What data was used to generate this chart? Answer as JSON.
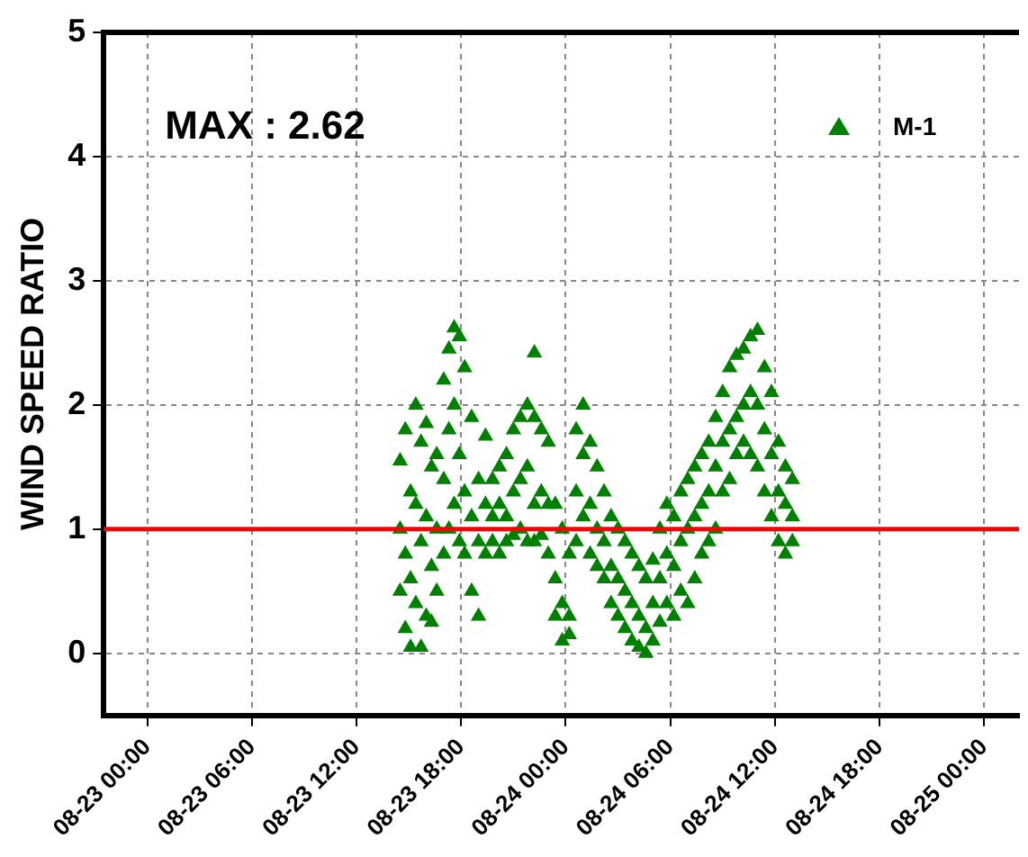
{
  "chart_data": {
    "type": "scatter",
    "ylabel": "WIND SPEED RATIO",
    "annotations": [
      "MAX : 2.62"
    ],
    "xlim": [
      "--08-22T21:30",
      "--08-25T02:00"
    ],
    "ylim": [
      -0.5,
      5
    ],
    "xticks": [
      {
        "value": "--08-23T00:00",
        "label": "08-23 00:00"
      },
      {
        "value": "--08-23T06:00",
        "label": "08-23 06:00"
      },
      {
        "value": "--08-23T12:00",
        "label": "08-23 12:00"
      },
      {
        "value": "--08-23T18:00",
        "label": "08-23 18:00"
      },
      {
        "value": "--08-24T00:00",
        "label": "08-24 00:00"
      },
      {
        "value": "--08-24T06:00",
        "label": "08-24 06:00"
      },
      {
        "value": "--08-24T12:00",
        "label": "08-24 12:00"
      },
      {
        "value": "--08-24T18:00",
        "label": "08-24 18:00"
      },
      {
        "value": "--08-25T00:00",
        "label": "08-25 00:00"
      }
    ],
    "yticks": [
      0,
      1,
      2,
      3,
      4,
      5
    ],
    "grid": true,
    "legend": "top right",
    "marker": "triangle",
    "ref_lines": [
      {
        "axis": "y",
        "value": 1,
        "color": "#ff0000"
      }
    ],
    "series": [
      {
        "name": "M-1",
        "color": "#008000",
        "x": [
          "--08-23T14:30",
          "--08-23T14:30",
          "--08-23T14:30",
          "--08-23T14:48",
          "--08-23T14:48",
          "--08-23T14:48",
          "--08-23T15:06",
          "--08-23T15:06",
          "--08-23T15:06",
          "--08-23T15:24",
          "--08-23T15:24",
          "--08-23T15:24",
          "--08-23T15:42",
          "--08-23T15:42",
          "--08-23T15:42",
          "--08-23T16:00",
          "--08-23T16:00",
          "--08-23T16:00",
          "--08-23T16:18",
          "--08-23T16:18",
          "--08-23T16:18",
          "--08-23T16:36",
          "--08-23T16:36",
          "--08-23T16:36",
          "--08-23T17:00",
          "--08-23T17:00",
          "--08-23T17:00",
          "--08-23T17:18",
          "--08-23T17:18",
          "--08-23T17:18",
          "--08-23T17:36",
          "--08-23T17:36",
          "--08-23T17:36",
          "--08-23T17:54",
          "--08-23T17:54",
          "--08-23T17:54",
          "--08-23T18:12",
          "--08-23T18:12",
          "--08-23T18:12",
          "--08-23T18:36",
          "--08-23T18:36",
          "--08-23T18:36",
          "--08-23T19:00",
          "--08-23T19:00",
          "--08-23T19:00",
          "--08-23T19:24",
          "--08-23T19:24",
          "--08-23T19:24",
          "--08-23T19:48",
          "--08-23T19:48",
          "--08-23T19:48",
          "--08-23T20:12",
          "--08-23T20:12",
          "--08-23T20:12",
          "--08-23T20:36",
          "--08-23T20:36",
          "--08-23T20:36",
          "--08-23T21:00",
          "--08-23T21:00",
          "--08-23T21:00",
          "--08-23T21:24",
          "--08-23T21:24",
          "--08-23T21:24",
          "--08-23T21:48",
          "--08-23T21:48",
          "--08-23T21:48",
          "--08-23T22:12",
          "--08-23T22:12",
          "--08-23T22:12",
          "--08-23T22:12",
          "--08-23T22:36",
          "--08-23T22:36",
          "--08-23T22:36",
          "--08-23T23:00",
          "--08-23T23:00",
          "--08-23T23:00",
          "--08-23T23:24",
          "--08-23T23:24",
          "--08-23T23:24",
          "--08-23T23:48",
          "--08-23T23:48",
          "--08-23T23:48",
          "--08-24T00:12",
          "--08-24T00:12",
          "--08-24T00:12",
          "--08-24T00:36",
          "--08-24T00:36",
          "--08-24T00:36",
          "--08-24T01:00",
          "--08-24T01:00",
          "--08-24T01:00",
          "--08-24T01:24",
          "--08-24T01:24",
          "--08-24T01:24",
          "--08-24T01:48",
          "--08-24T01:48",
          "--08-24T01:48",
          "--08-24T02:12",
          "--08-24T02:12",
          "--08-24T02:12",
          "--08-24T02:36",
          "--08-24T02:36",
          "--08-24T02:36",
          "--08-24T03:00",
          "--08-24T03:00",
          "--08-24T03:00",
          "--08-24T03:24",
          "--08-24T03:24",
          "--08-24T03:24",
          "--08-24T03:48",
          "--08-24T03:48",
          "--08-24T03:48",
          "--08-24T04:12",
          "--08-24T04:12",
          "--08-24T04:12",
          "--08-24T04:36",
          "--08-24T04:36",
          "--08-24T04:36",
          "--08-24T05:00",
          "--08-24T05:00",
          "--08-24T05:00",
          "--08-24T05:24",
          "--08-24T05:24",
          "--08-24T05:24",
          "--08-24T05:48",
          "--08-24T05:48",
          "--08-24T05:48",
          "--08-24T06:12",
          "--08-24T06:12",
          "--08-24T06:12",
          "--08-24T06:36",
          "--08-24T06:36",
          "--08-24T06:36",
          "--08-24T07:00",
          "--08-24T07:00",
          "--08-24T07:00",
          "--08-24T07:24",
          "--08-24T07:24",
          "--08-24T07:24",
          "--08-24T07:48",
          "--08-24T07:48",
          "--08-24T07:48",
          "--08-24T08:12",
          "--08-24T08:12",
          "--08-24T08:12",
          "--08-24T08:36",
          "--08-24T08:36",
          "--08-24T08:36",
          "--08-24T09:00",
          "--08-24T09:00",
          "--08-24T09:00",
          "--08-24T09:24",
          "--08-24T09:24",
          "--08-24T09:24",
          "--08-24T09:48",
          "--08-24T09:48",
          "--08-24T09:48",
          "--08-24T10:12",
          "--08-24T10:12",
          "--08-24T10:12",
          "--08-24T10:36",
          "--08-24T10:36",
          "--08-24T10:36",
          "--08-24T11:00",
          "--08-24T11:00",
          "--08-24T11:00",
          "--08-24T11:24",
          "--08-24T11:24",
          "--08-24T11:24",
          "--08-24T11:48",
          "--08-24T11:48",
          "--08-24T11:48",
          "--08-24T12:12",
          "--08-24T12:12",
          "--08-24T12:12",
          "--08-24T12:36",
          "--08-24T12:36",
          "--08-24T12:36",
          "--08-24T13:00",
          "--08-24T13:00",
          "--08-24T13:00"
        ],
        "values": [
          1.55,
          1.0,
          0.5,
          1.8,
          0.8,
          0.2,
          1.3,
          0.6,
          0.05,
          2.0,
          1.2,
          0.4,
          1.7,
          0.9,
          0.05,
          1.85,
          1.1,
          0.3,
          1.5,
          0.7,
          0.25,
          1.6,
          1.0,
          0.5,
          2.2,
          1.4,
          0.8,
          2.45,
          1.8,
          1.0,
          2.62,
          2.0,
          1.2,
          2.55,
          1.6,
          0.9,
          2.3,
          1.3,
          0.8,
          1.9,
          1.1,
          0.5,
          1.4,
          0.9,
          0.3,
          1.75,
          1.2,
          0.8,
          1.4,
          1.1,
          0.9,
          1.5,
          1.2,
          0.8,
          1.6,
          1.1,
          0.9,
          1.8,
          1.3,
          0.95,
          1.9,
          1.4,
          1.0,
          2.0,
          1.5,
          0.9,
          2.42,
          1.9,
          1.2,
          0.9,
          1.8,
          1.3,
          0.95,
          1.7,
          1.2,
          0.8,
          1.2,
          0.6,
          0.3,
          1.0,
          0.4,
          0.1,
          0.8,
          0.3,
          0.15,
          1.8,
          1.3,
          0.9,
          2.0,
          1.6,
          1.1,
          1.7,
          1.2,
          0.8,
          1.5,
          1.0,
          0.7,
          1.3,
          0.9,
          0.6,
          1.1,
          0.7,
          0.4,
          1.0,
          0.6,
          0.3,
          0.9,
          0.5,
          0.2,
          0.8,
          0.4,
          0.1,
          0.7,
          0.3,
          0.05,
          0.6,
          0.2,
          0.0,
          0.75,
          0.4,
          0.1,
          1.0,
          0.6,
          0.25,
          1.2,
          0.8,
          0.4,
          1.1,
          0.7,
          0.3,
          1.3,
          0.9,
          0.5,
          1.4,
          1.0,
          0.4,
          1.5,
          1.1,
          0.6,
          1.6,
          1.2,
          0.8,
          1.7,
          1.3,
          0.9,
          1.9,
          1.5,
          1.0,
          2.1,
          1.7,
          1.3,
          2.3,
          1.8,
          1.4,
          2.4,
          1.9,
          1.6,
          2.45,
          2.0,
          1.7,
          2.55,
          2.1,
          1.6,
          2.6,
          2.0,
          1.5,
          2.3,
          1.8,
          1.3,
          2.1,
          1.6,
          1.1,
          1.7,
          1.3,
          0.9,
          1.5,
          1.2,
          0.8,
          1.4,
          1.1,
          0.9
        ]
      }
    ]
  }
}
